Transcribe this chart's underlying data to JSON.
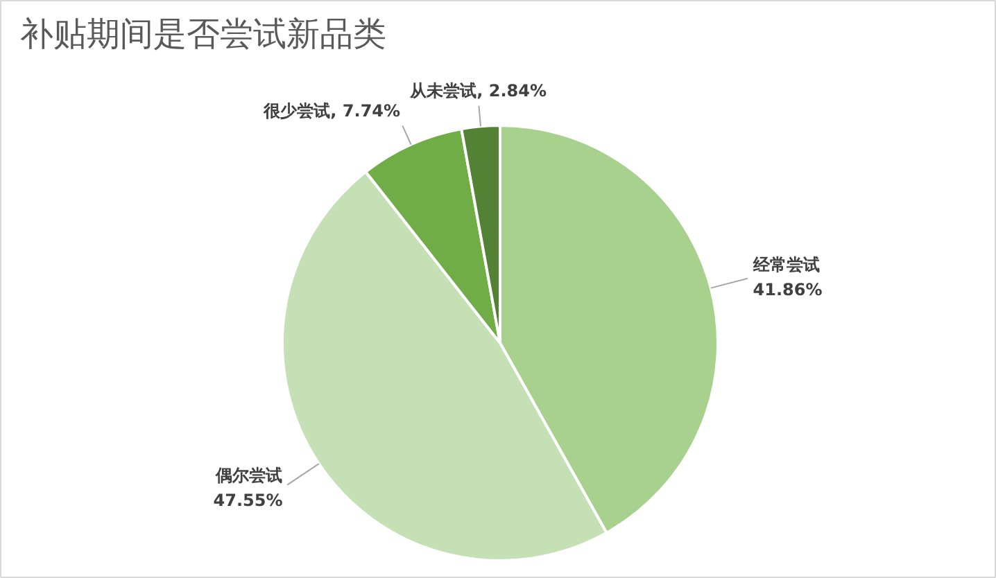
{
  "chart_data": {
    "type": "pie",
    "title": "补贴期间是否尝试新品类",
    "categories": [
      "经常尝试",
      "偶尔尝试",
      "很少尝试",
      "从未尝试"
    ],
    "values": [
      41.86,
      47.55,
      7.74,
      2.84
    ],
    "value_labels": [
      "41.86%",
      "47.55%",
      "7.74%",
      "2.84%"
    ],
    "colors": [
      "#a9d18e",
      "#c5e0b4",
      "#70ad47",
      "#548235"
    ]
  }
}
